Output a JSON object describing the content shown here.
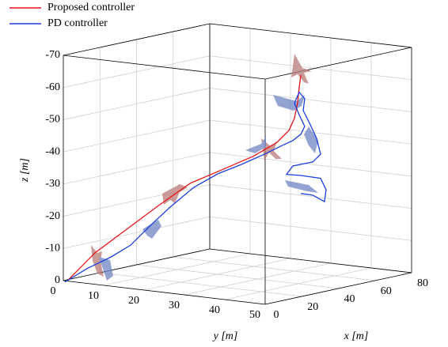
{
  "chart_data": {
    "type": "line3d",
    "xlabel": "x [m]",
    "ylabel": "y [m]",
    "zlabel": "z [m]",
    "xlim": [
      0,
      80
    ],
    "xticks": [
      0,
      20,
      40,
      60,
      80
    ],
    "ylim": [
      0,
      50
    ],
    "yticks": [
      0,
      10,
      20,
      30,
      40,
      50
    ],
    "zlim": [
      0,
      -70
    ],
    "zticks": [
      0,
      -10,
      -20,
      -30,
      -40,
      -50,
      -60,
      -70
    ],
    "grid": true,
    "legend": "top-left",
    "series": [
      {
        "name": "Proposed controller",
        "color": "#e8141a",
        "x": [
          0,
          1,
          2,
          3,
          4,
          5,
          6,
          10.9,
          17.4,
          20.4,
          22.1,
          23,
          23.9
        ],
        "y": [
          1,
          7.4,
          14.8,
          22.2,
          29.6,
          36.9,
          44.3,
          48,
          48,
          48,
          48,
          48,
          48
        ],
        "z": [
          -0.1,
          -9.6,
          -17.9,
          -26.2,
          -34.1,
          -39.2,
          -44.4,
          -48.7,
          -51.6,
          -55,
          -59.6,
          -64.3,
          -68
        ]
      },
      {
        "name": "PD controller",
        "color": "#1a3fe0",
        "x": [
          0,
          1,
          2,
          3,
          4,
          5,
          6,
          7,
          8,
          4.4,
          13.1,
          19.5,
          23.9,
          26,
          23,
          20.4,
          23,
          26,
          25.2,
          29.1,
          32.5,
          34.7,
          30.4,
          19.5,
          16.1,
          23.9,
          34.7,
          37.7,
          36.8,
          30.4,
          23.9
        ],
        "y": [
          0.4,
          5.4,
          10.9,
          15.3,
          19.8,
          24.2,
          29.6,
          35.1,
          40.5,
          48,
          48,
          48,
          48,
          48,
          48,
          48,
          48,
          48,
          48,
          48,
          48,
          48,
          48,
          48,
          48,
          48,
          48,
          48,
          48,
          48,
          48
        ],
        "z": [
          0.4,
          -4.4,
          -8.7,
          -12.9,
          -19.6,
          -25.8,
          -32.6,
          -37.5,
          -41.1,
          -45.9,
          -47.3,
          -48.2,
          -49.6,
          -51.8,
          -55.8,
          -59.7,
          -62.8,
          -60.4,
          -56.8,
          -51.9,
          -47.3,
          -42.1,
          -40.2,
          -40.3,
          -38.1,
          -36.8,
          -34.6,
          -30.7,
          -27.1,
          -29.9,
          -31.2
        ]
      }
    ]
  }
}
